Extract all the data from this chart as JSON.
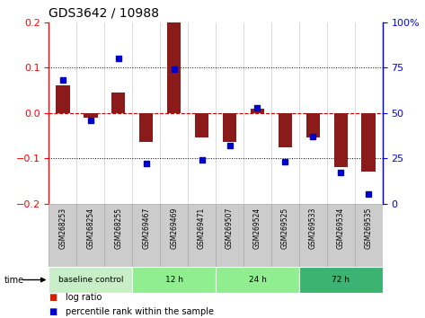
{
  "title": "GDS3642 / 10988",
  "samples": [
    "GSM268253",
    "GSM268254",
    "GSM268255",
    "GSM269467",
    "GSM269469",
    "GSM269471",
    "GSM269507",
    "GSM269524",
    "GSM269525",
    "GSM269533",
    "GSM269534",
    "GSM269535"
  ],
  "log_ratio": [
    0.06,
    -0.01,
    0.045,
    -0.065,
    0.2,
    -0.055,
    -0.065,
    0.01,
    -0.075,
    -0.055,
    -0.12,
    -0.13
  ],
  "percentile_rank": [
    68,
    46,
    80,
    22,
    74,
    24,
    32,
    53,
    23,
    37,
    17,
    5
  ],
  "ylim_left": [
    -0.2,
    0.2
  ],
  "ylim_right": [
    0,
    100
  ],
  "yticks_left": [
    -0.2,
    -0.1,
    0.0,
    0.1,
    0.2
  ],
  "yticks_right": [
    0,
    25,
    50,
    75,
    100
  ],
  "bar_color": "#8B1A1A",
  "dot_color": "#0000CC",
  "hline_color": "#CC0000",
  "dotline_color": "black",
  "group_labels": [
    "baseline control",
    "12 h",
    "24 h",
    "72 h"
  ],
  "group_starts": [
    0,
    3,
    6,
    9
  ],
  "group_ends": [
    3,
    6,
    9,
    12
  ],
  "group_colors": [
    "#C8EEC8",
    "#90EE90",
    "#90EE90",
    "#3CB371"
  ],
  "sample_bg_color": "#CCCCCC",
  "sample_border_color": "#AAAAAA",
  "time_label": "time",
  "legend_log_ratio": "log ratio",
  "legend_percentile": "percentile rank within the sample",
  "legend_log_color": "#CC2200",
  "legend_pct_color": "#0000CC",
  "bar_width": 0.5
}
